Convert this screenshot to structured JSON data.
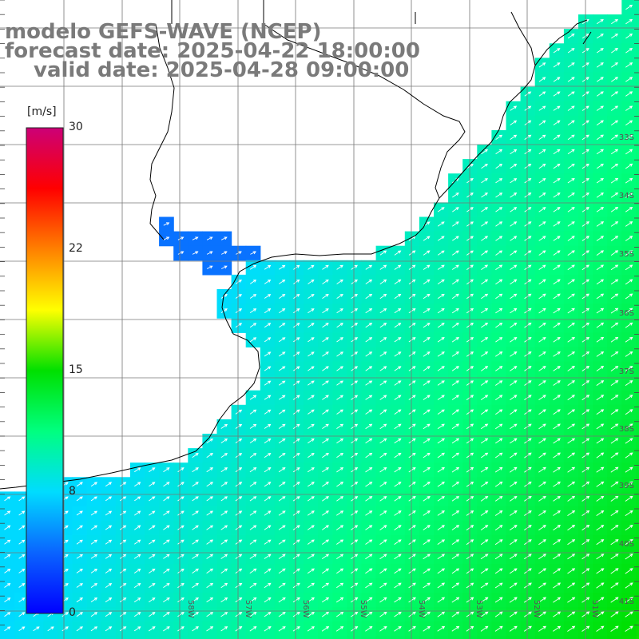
{
  "title": {
    "line1": "modelo GEFS-WAVE (NCEP)",
    "line2": "forecast date: 2025-04-22 18:00:00",
    "line3": "valid date: 2025-04-28 09:00:00"
  },
  "colorbar": {
    "unit": "[m/s]",
    "min": 0,
    "max": 30,
    "ticks": [
      "30",
      "22",
      "15",
      "8",
      "0"
    ],
    "tick_values": [
      30,
      22,
      15,
      8,
      0
    ],
    "colors": [
      "#0000ff",
      "#0a64ff",
      "#00dcff",
      "#00ff80",
      "#00e000",
      "#ffff00",
      "#ff8000",
      "#ff0000",
      "#cc0077"
    ]
  },
  "lat_labels": [
    "33S",
    "34S",
    "35S",
    "36S",
    "37S",
    "38S",
    "39S",
    "40S",
    "41S"
  ],
  "lon_labels": [
    "58W",
    "57W",
    "56W",
    "55W",
    "54W",
    "53W",
    "52W",
    "51W"
  ],
  "wind_field": {
    "quantity": "wind speed",
    "unit": "m/s",
    "direction": "from southwest",
    "typical_speed_near_coast": 8,
    "typical_speed_offshore": 12,
    "typical_speed_far_southeast": 15
  }
}
